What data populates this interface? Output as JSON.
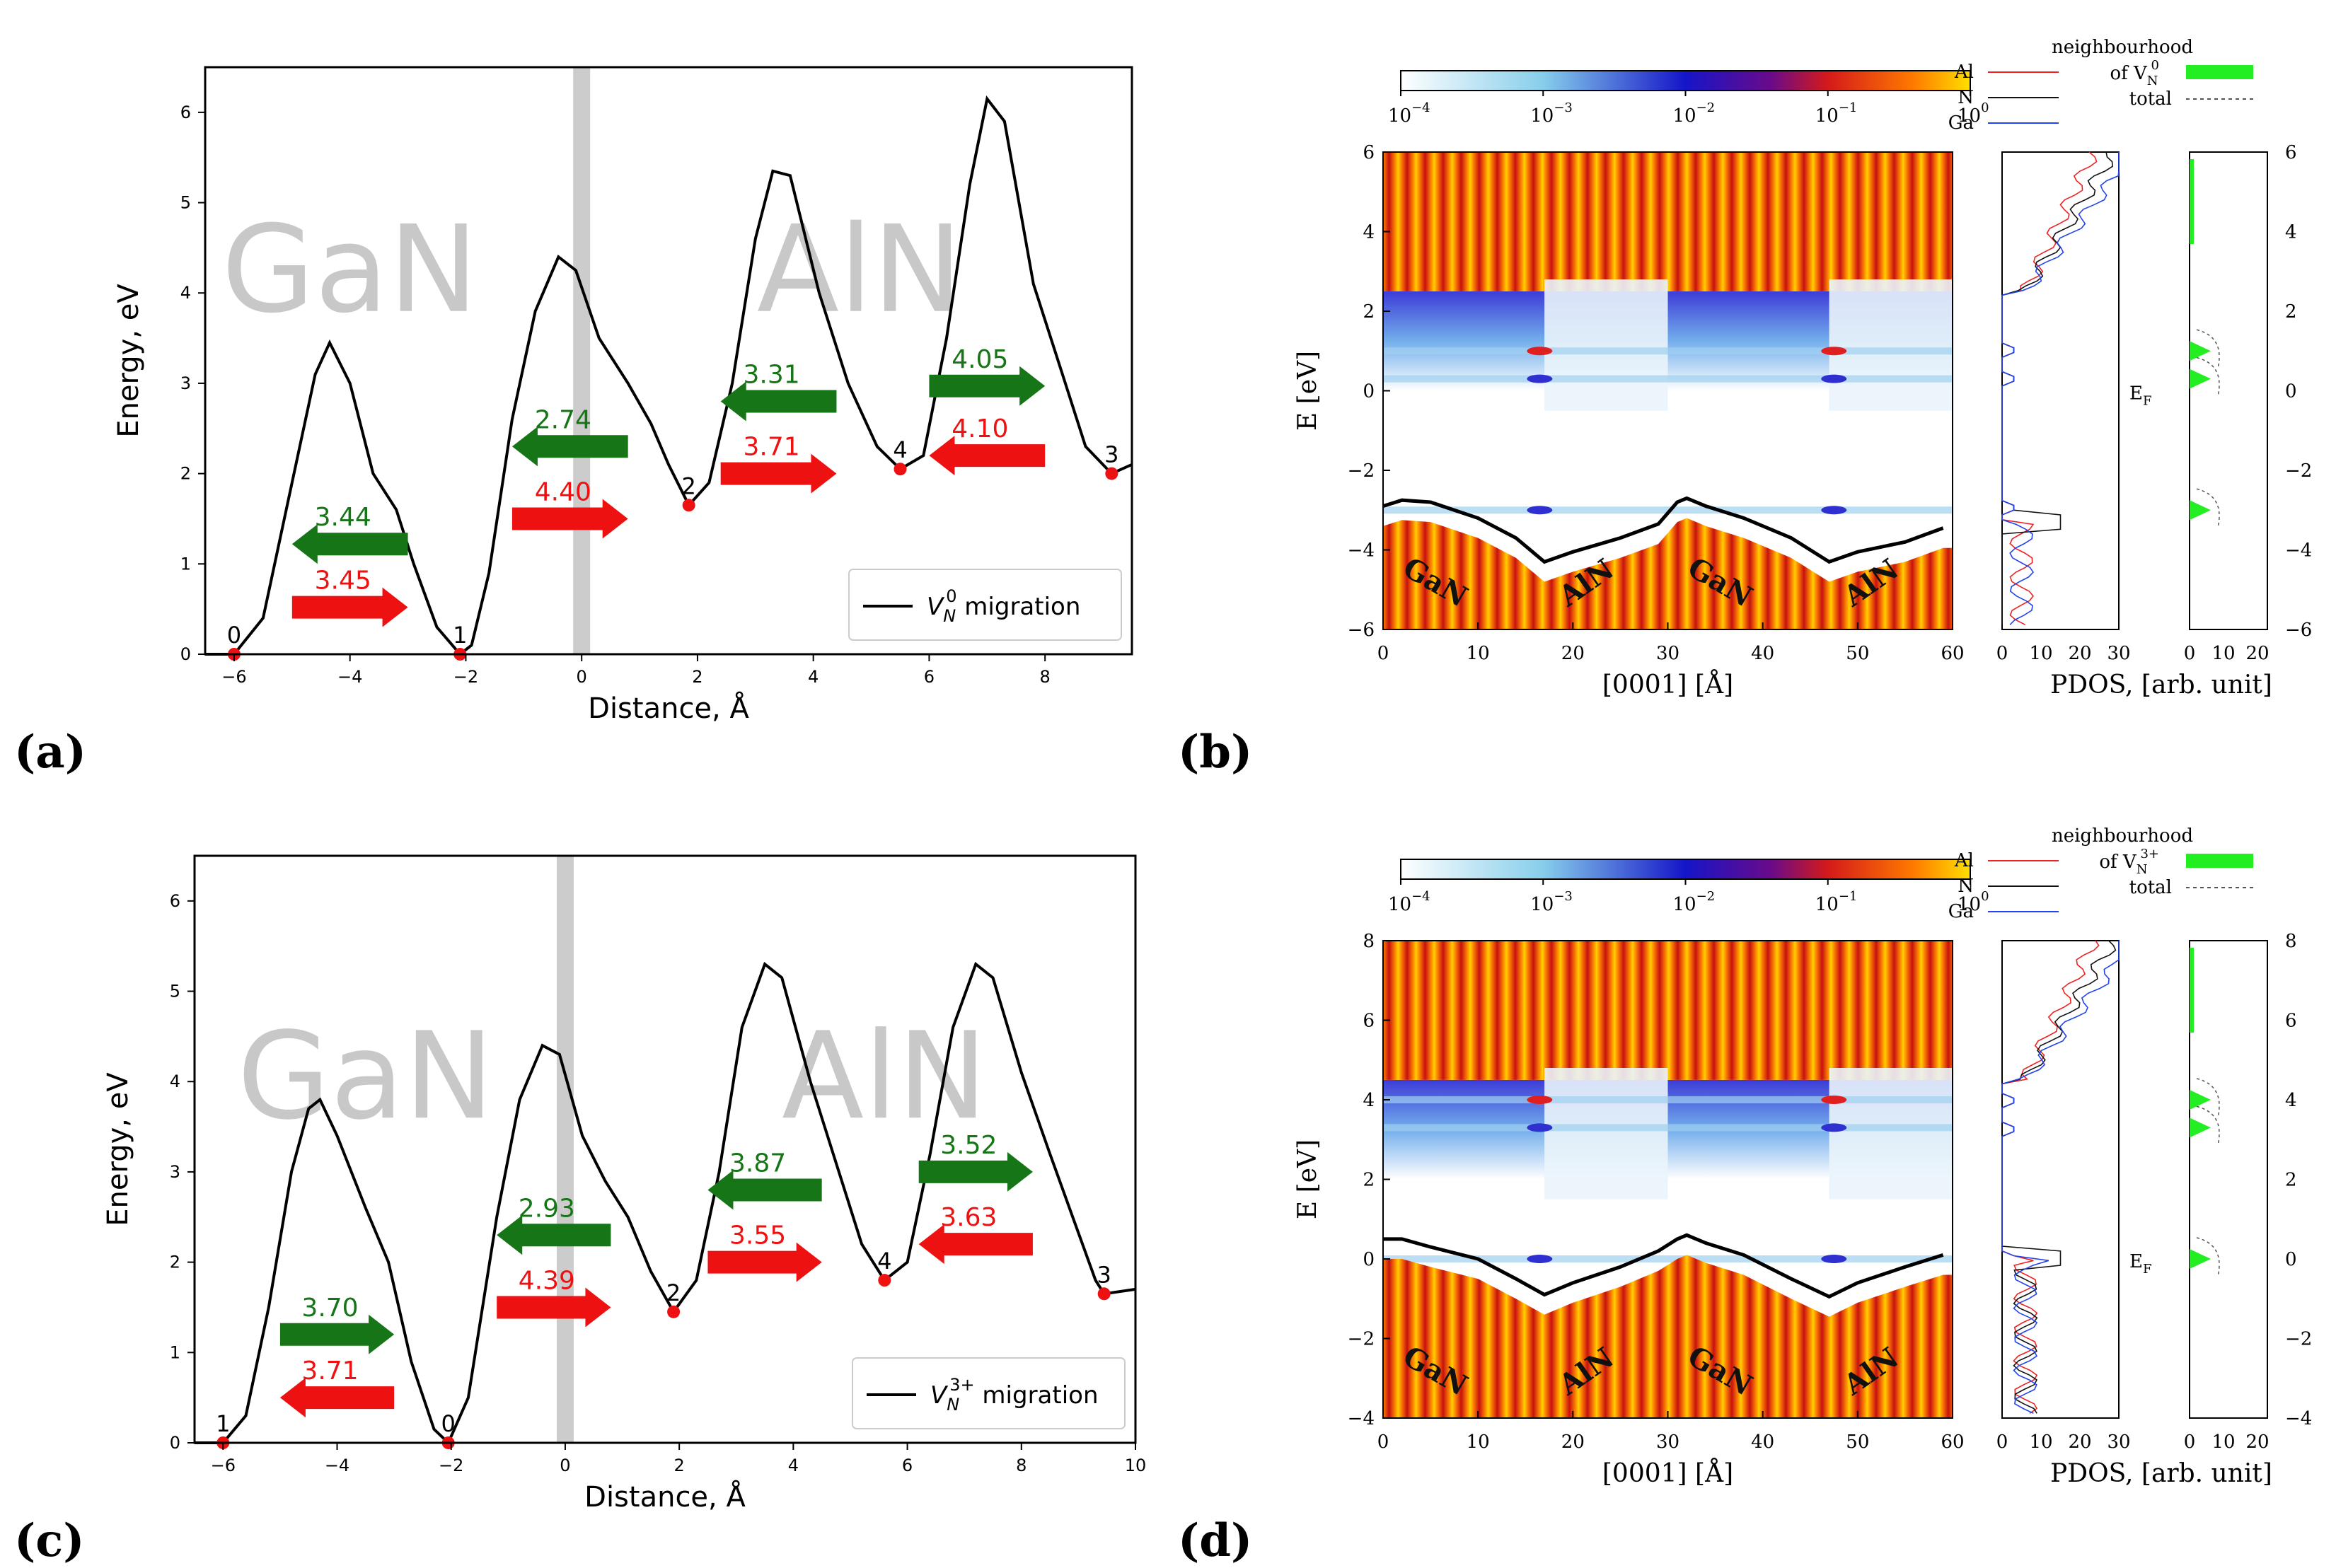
{
  "colors": {
    "green": "#167516",
    "red": "#ee1111",
    "curve": "#000000",
    "barrier": "#cccccc",
    "region_text": "#c8c8c8",
    "al": "#ee2222",
    "n": "#111111",
    "ga": "#2244ee",
    "pdos_fill": "#22ee22"
  },
  "panel_labels": [
    "(a)",
    "(b)",
    "(c)",
    "(d)"
  ],
  "chart_data": [
    {
      "panel": "(a)",
      "type": "line",
      "xlabel": "Distance, Å",
      "ylabel": "Energy, eV",
      "xlim": [
        -6.5,
        9.5
      ],
      "ylim": [
        0,
        6.5
      ],
      "xticks": [
        "−6",
        "−4",
        "−2",
        "0",
        "2",
        "4",
        "6",
        "8"
      ],
      "xtick_values": [
        -6,
        -4,
        -2,
        0,
        2,
        4,
        6,
        8
      ],
      "yticks": [
        "0",
        "1",
        "2",
        "3",
        "4",
        "5",
        "6"
      ],
      "ytick_values": [
        0,
        1,
        2,
        3,
        4,
        5,
        6
      ],
      "region_labels": [
        {
          "text": "GaN",
          "x": -4.0,
          "y": 3.8
        },
        {
          "text": "AlN",
          "x": 4.8,
          "y": 3.8
        }
      ],
      "interface_x": 0,
      "curve": [
        [
          -6.5,
          0
        ],
        [
          -6,
          0
        ],
        [
          -5.5,
          0.4
        ],
        [
          -5.0,
          1.9
        ],
        [
          -4.6,
          3.1
        ],
        [
          -4.35,
          3.45
        ],
        [
          -4.0,
          3.0
        ],
        [
          -3.6,
          2.0
        ],
        [
          -3.2,
          1.6
        ],
        [
          -2.9,
          1.0
        ],
        [
          -2.5,
          0.3
        ],
        [
          -2.1,
          0
        ],
        [
          -1.9,
          0.1
        ],
        [
          -1.6,
          0.9
        ],
        [
          -1.2,
          2.6
        ],
        [
          -0.8,
          3.8
        ],
        [
          -0.4,
          4.4
        ],
        [
          -0.1,
          4.25
        ],
        [
          0.3,
          3.5
        ],
        [
          0.8,
          3.0
        ],
        [
          1.2,
          2.55
        ],
        [
          1.5,
          2.1
        ],
        [
          1.85,
          1.65
        ],
        [
          2.2,
          1.9
        ],
        [
          2.6,
          3.0
        ],
        [
          3.0,
          4.6
        ],
        [
          3.3,
          5.35
        ],
        [
          3.6,
          5.3
        ],
        [
          4.1,
          4.0
        ],
        [
          4.6,
          3.0
        ],
        [
          5.1,
          2.3
        ],
        [
          5.5,
          2.05
        ],
        [
          5.9,
          2.2
        ],
        [
          6.3,
          3.5
        ],
        [
          6.7,
          5.2
        ],
        [
          7.0,
          6.15
        ],
        [
          7.3,
          5.9
        ],
        [
          7.8,
          4.1
        ],
        [
          8.3,
          3.1
        ],
        [
          8.7,
          2.3
        ],
        [
          9.15,
          2.0
        ],
        [
          9.5,
          2.1
        ]
      ],
      "points": [
        {
          "label": "0",
          "x": -6.0,
          "y": 0.0
        },
        {
          "label": "1",
          "x": -2.1,
          "y": 0.0
        },
        {
          "label": "2",
          "x": 1.85,
          "y": 1.65
        },
        {
          "label": "4",
          "x": 5.5,
          "y": 2.05
        },
        {
          "label": "3",
          "x": 9.15,
          "y": 2.0
        }
      ],
      "arrows": [
        {
          "value": "3.44",
          "color": "green",
          "dir": "left",
          "x0": -5.0,
          "x1": -3.0,
          "y": 1.22
        },
        {
          "value": "3.45",
          "color": "red",
          "dir": "right",
          "x0": -5.0,
          "x1": -3.0,
          "y": 0.52
        },
        {
          "value": "2.74",
          "color": "green",
          "dir": "left",
          "x0": -1.2,
          "x1": 0.8,
          "y": 2.3
        },
        {
          "value": "4.40",
          "color": "red",
          "dir": "right",
          "x0": -1.2,
          "x1": 0.8,
          "y": 1.5
        },
        {
          "value": "3.31",
          "color": "green",
          "dir": "left",
          "x0": 2.4,
          "x1": 4.4,
          "y": 2.8
        },
        {
          "value": "3.71",
          "color": "red",
          "dir": "right",
          "x0": 2.4,
          "x1": 4.4,
          "y": 2.0
        },
        {
          "value": "4.05",
          "color": "green",
          "dir": "right",
          "x0": 6.0,
          "x1": 8.0,
          "y": 2.97
        },
        {
          "value": "4.10",
          "color": "red",
          "dir": "left",
          "x0": 6.0,
          "x1": 8.0,
          "y": 2.2
        }
      ],
      "legend": {
        "label": "migration",
        "symbol": "V",
        "sub": "N",
        "sup": "0",
        "position": "lower right"
      }
    },
    {
      "panel": "(b)",
      "type": "heatmap",
      "colorbar_ticks": [
        "10",
        "10",
        "10",
        "10",
        "10"
      ],
      "colorbar_exps": [
        "−4",
        "−3",
        "−2",
        "−1",
        "0"
      ],
      "xlabel": "[0001] [Å]",
      "ylabel": "E [eV]",
      "xlim": [
        0,
        60
      ],
      "ylim": [
        -6,
        6
      ],
      "xticks": [
        "0",
        "10",
        "20",
        "30",
        "40",
        "50",
        "60"
      ],
      "yticks": [
        "−6",
        "−4",
        "−2",
        "0",
        "2",
        "4",
        "6"
      ],
      "ytick_values": [
        -6,
        -4,
        -2,
        0,
        2,
        4,
        6
      ],
      "right_yticks": [
        "6",
        "4",
        "2",
        "0",
        "−2",
        "−4",
        "−6"
      ],
      "ef_label": "E",
      "ef_sub": "F",
      "vbm_edge": [
        [
          0,
          -2.9
        ],
        [
          2,
          -2.75
        ],
        [
          5,
          -2.8
        ],
        [
          10,
          -3.2
        ],
        [
          14,
          -3.7
        ],
        [
          17,
          -4.3
        ],
        [
          20,
          -4.05
        ],
        [
          25,
          -3.7
        ],
        [
          29,
          -3.35
        ],
        [
          31,
          -2.8
        ],
        [
          32,
          -2.7
        ],
        [
          34,
          -2.9
        ],
        [
          38,
          -3.2
        ],
        [
          43,
          -3.7
        ],
        [
          47,
          -4.3
        ],
        [
          50,
          -4.05
        ],
        [
          55,
          -3.8
        ],
        [
          59,
          -3.45
        ]
      ],
      "materials": [
        "GaN",
        "AlN",
        "GaN",
        "AlN"
      ],
      "pdos_xlabel": "PDOS, [arb. unit]",
      "pdos_xticks": [
        "0",
        "10",
        "20",
        "30"
      ],
      "pdos2_xticks": [
        "0",
        "10",
        "20"
      ],
      "legend_species": [
        "Al",
        "N",
        "Ga"
      ],
      "legend_neigh_line1": "neighbourhood",
      "legend_neigh_line2": "of V",
      "legend_neigh_sub": "N",
      "legend_neigh_sup": "0",
      "legend_total": "total",
      "pdos_peaks": [
        1.0,
        0.3,
        -3.0
      ]
    },
    {
      "panel": "(c)",
      "type": "line",
      "xlabel": "Distance, Å",
      "ylabel": "Energy, eV",
      "xlim": [
        -6.5,
        10
      ],
      "ylim": [
        0,
        6.5
      ],
      "xticks": [
        "−6",
        "−4",
        "−2",
        "0",
        "2",
        "4",
        "6",
        "8",
        "10"
      ],
      "xtick_values": [
        -6,
        -4,
        -2,
        0,
        2,
        4,
        6,
        8,
        10
      ],
      "yticks": [
        "0",
        "1",
        "2",
        "3",
        "4",
        "5",
        "6"
      ],
      "ytick_values": [
        0,
        1,
        2,
        3,
        4,
        5,
        6
      ],
      "region_labels": [
        {
          "text": "GaN",
          "x": -3.5,
          "y": 3.6
        },
        {
          "text": "AlN",
          "x": 5.6,
          "y": 3.6
        }
      ],
      "interface_x": 0,
      "curve": [
        [
          -6.5,
          0
        ],
        [
          -6,
          0
        ],
        [
          -5.6,
          0.3
        ],
        [
          -5.2,
          1.5
        ],
        [
          -4.8,
          3.0
        ],
        [
          -4.5,
          3.7
        ],
        [
          -4.3,
          3.8
        ],
        [
          -4.0,
          3.4
        ],
        [
          -3.5,
          2.6
        ],
        [
          -3.1,
          2.0
        ],
        [
          -2.7,
          0.9
        ],
        [
          -2.3,
          0.15
        ],
        [
          -2.05,
          0
        ],
        [
          -1.7,
          0.5
        ],
        [
          -1.2,
          2.5
        ],
        [
          -0.8,
          3.8
        ],
        [
          -0.4,
          4.4
        ],
        [
          -0.1,
          4.3
        ],
        [
          0.3,
          3.4
        ],
        [
          0.7,
          2.9
        ],
        [
          1.1,
          2.5
        ],
        [
          1.5,
          1.9
        ],
        [
          1.9,
          1.45
        ],
        [
          2.3,
          1.8
        ],
        [
          2.7,
          3.0
        ],
        [
          3.1,
          4.6
        ],
        [
          3.5,
          5.3
        ],
        [
          3.8,
          5.15
        ],
        [
          4.3,
          4.0
        ],
        [
          4.8,
          3.0
        ],
        [
          5.2,
          2.2
        ],
        [
          5.6,
          1.8
        ],
        [
          6.0,
          2.0
        ],
        [
          6.4,
          3.2
        ],
        [
          6.8,
          4.6
        ],
        [
          7.2,
          5.3
        ],
        [
          7.5,
          5.15
        ],
        [
          8.0,
          4.1
        ],
        [
          8.5,
          3.2
        ],
        [
          8.9,
          2.5
        ],
        [
          9.3,
          1.8
        ],
        [
          9.45,
          1.65
        ],
        [
          10,
          1.7
        ]
      ],
      "points": [
        {
          "label": "1",
          "x": -6.0,
          "y": 0.0
        },
        {
          "label": "0",
          "x": -2.05,
          "y": 0.0
        },
        {
          "label": "2",
          "x": 1.9,
          "y": 1.45
        },
        {
          "label": "4",
          "x": 5.6,
          "y": 1.8
        },
        {
          "label": "3",
          "x": 9.45,
          "y": 1.65
        }
      ],
      "arrows": [
        {
          "value": "3.70",
          "color": "green",
          "dir": "right",
          "x0": -5.0,
          "x1": -3.0,
          "y": 1.2
        },
        {
          "value": "3.71",
          "color": "red",
          "dir": "left",
          "x0": -5.0,
          "x1": -3.0,
          "y": 0.5
        },
        {
          "value": "2.93",
          "color": "green",
          "dir": "left",
          "x0": -1.2,
          "x1": 0.8,
          "y": 2.3
        },
        {
          "value": "4.39",
          "color": "red",
          "dir": "right",
          "x0": -1.2,
          "x1": 0.8,
          "y": 1.5
        },
        {
          "value": "3.87",
          "color": "green",
          "dir": "left",
          "x0": 2.5,
          "x1": 4.5,
          "y": 2.8
        },
        {
          "value": "3.55",
          "color": "red",
          "dir": "right",
          "x0": 2.5,
          "x1": 4.5,
          "y": 2.0
        },
        {
          "value": "3.52",
          "color": "green",
          "dir": "right",
          "x0": 6.2,
          "x1": 8.2,
          "y": 3.0
        },
        {
          "value": "3.63",
          "color": "red",
          "dir": "left",
          "x0": 6.2,
          "x1": 8.2,
          "y": 2.2
        }
      ],
      "legend": {
        "label": "migration",
        "symbol": "V",
        "sub": "N",
        "sup": "3+",
        "position": "lower right"
      }
    },
    {
      "panel": "(d)",
      "type": "heatmap",
      "colorbar_ticks": [
        "10",
        "10",
        "10",
        "10",
        "10"
      ],
      "colorbar_exps": [
        "−4",
        "−3",
        "−2",
        "−1",
        "0"
      ],
      "xlabel": "[0001] [Å]",
      "ylabel": "E [eV]",
      "xlim": [
        0,
        60
      ],
      "ylim": [
        -4,
        8
      ],
      "xticks": [
        "0",
        "10",
        "20",
        "30",
        "40",
        "50",
        "60"
      ],
      "yticks": [
        "−4",
        "−2",
        "0",
        "2",
        "4",
        "6",
        "8"
      ],
      "ytick_values": [
        -4,
        -2,
        0,
        2,
        4,
        6,
        8
      ],
      "right_yticks": [
        "8",
        "6",
        "4",
        "2",
        "0",
        "−2",
        "−4"
      ],
      "ef_label": "E",
      "ef_sub": "F",
      "vbm_edge": [
        [
          0,
          0.5
        ],
        [
          2,
          0.5
        ],
        [
          5,
          0.3
        ],
        [
          10,
          0.0
        ],
        [
          14,
          -0.5
        ],
        [
          17,
          -0.9
        ],
        [
          20,
          -0.6
        ],
        [
          25,
          -0.2
        ],
        [
          29,
          0.2
        ],
        [
          31,
          0.5
        ],
        [
          32,
          0.6
        ],
        [
          34,
          0.4
        ],
        [
          38,
          0.1
        ],
        [
          43,
          -0.5
        ],
        [
          47,
          -0.95
        ],
        [
          50,
          -0.6
        ],
        [
          55,
          -0.2
        ],
        [
          59,
          0.1
        ]
      ],
      "materials": [
        "GaN",
        "AlN",
        "GaN",
        "AlN"
      ],
      "pdos_xlabel": "PDOS, [arb. unit]",
      "pdos_xticks": [
        "0",
        "10",
        "20",
        "30"
      ],
      "pdos2_xticks": [
        "0",
        "10",
        "20"
      ],
      "legend_species": [
        "Al",
        "N",
        "Ga"
      ],
      "legend_neigh_line1": "neighbourhood",
      "legend_neigh_line2": "of V",
      "legend_neigh_sub": "N",
      "legend_neigh_sup": "3+",
      "legend_total": "total",
      "pdos_peaks": [
        4.0,
        3.3,
        0.0
      ]
    }
  ]
}
